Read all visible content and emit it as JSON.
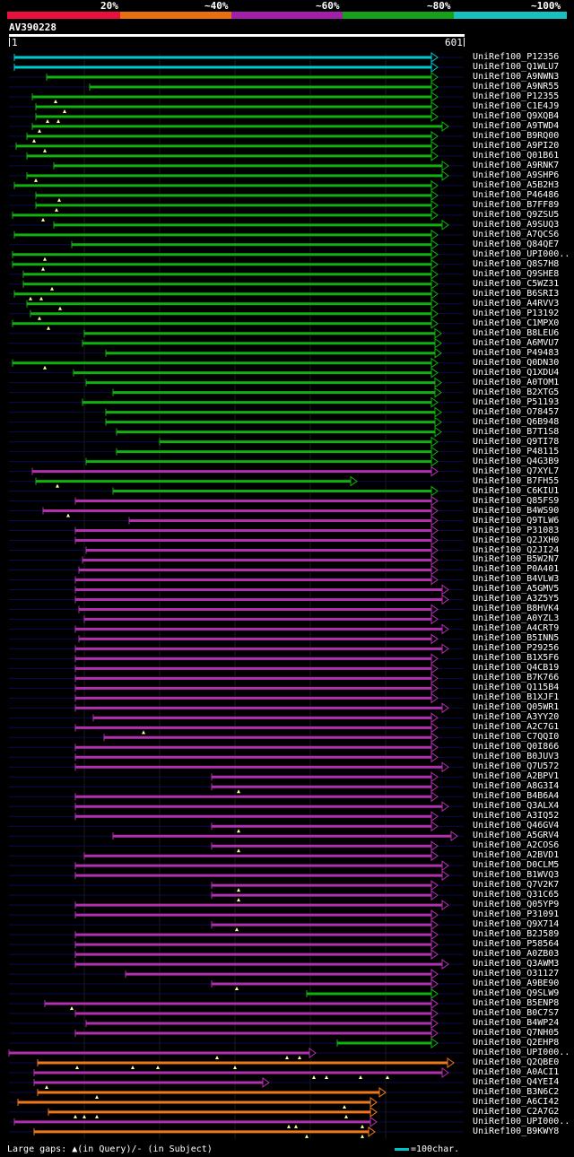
{
  "legend": [
    {
      "label": "20%",
      "color": "#e8103c"
    },
    {
      "label": "~40%",
      "color": "#e87010"
    },
    {
      "label": "~60%",
      "color": "#a020a8"
    },
    {
      "label": "~80%",
      "color": "#18a018"
    },
    {
      "label": "~100%",
      "color": "#18c0c0"
    }
  ],
  "query": {
    "name": "AV390228",
    "start": "1",
    "end": "601"
  },
  "colors": {
    "cyan": "#00c8d0",
    "green": "#10b010",
    "purple": "#b030b0",
    "orange": "#f07818"
  },
  "hits": [
    {
      "name": "UniRef100_P12356",
      "c": "cyan",
      "s": 16,
      "e": 488,
      "m": []
    },
    {
      "name": "UniRef100_Q1WLU7",
      "c": "cyan",
      "s": 16,
      "e": 488,
      "m": []
    },
    {
      "name": "UniRef100_A9NWN3",
      "c": "green",
      "s": 52,
      "e": 488,
      "m": []
    },
    {
      "name": "UniRef100_A9NR55",
      "c": "green",
      "s": 100,
      "e": 488,
      "m": []
    },
    {
      "name": "UniRef100_P12355",
      "c": "green",
      "s": 36,
      "e": 488,
      "m": [
        62
      ]
    },
    {
      "name": "UniRef100_C1E4J9",
      "c": "green",
      "s": 40,
      "e": 488,
      "m": [
        72
      ]
    },
    {
      "name": "UniRef100_Q9XQB4",
      "c": "green",
      "s": 40,
      "e": 488,
      "m": [
        53,
        65
      ]
    },
    {
      "name": "UniRef100_A9TWD4",
      "c": "green",
      "s": 36,
      "e": 500,
      "m": [
        44
      ]
    },
    {
      "name": "UniRef100_B9RQ00",
      "c": "green",
      "s": 30,
      "e": 488,
      "m": [
        38
      ]
    },
    {
      "name": "UniRef100_A9PI20",
      "c": "green",
      "s": 18,
      "e": 488,
      "m": [
        50
      ]
    },
    {
      "name": "UniRef100_Q01B61",
      "c": "green",
      "s": 30,
      "e": 488,
      "m": []
    },
    {
      "name": "UniRef100_A9RNK7",
      "c": "green",
      "s": 60,
      "e": 500,
      "m": []
    },
    {
      "name": "UniRef100_A9SHP6",
      "c": "green",
      "s": 30,
      "e": 500,
      "m": [
        40
      ]
    },
    {
      "name": "UniRef100_A5B2H3",
      "c": "green",
      "s": 16,
      "e": 488,
      "m": []
    },
    {
      "name": "UniRef100_P46486",
      "c": "green",
      "s": 40,
      "e": 488,
      "m": [
        66
      ]
    },
    {
      "name": "UniRef100_B7FF89",
      "c": "green",
      "s": 40,
      "e": 488,
      "m": [
        63
      ]
    },
    {
      "name": "UniRef100_Q9ZSU5",
      "c": "green",
      "s": 14,
      "e": 488,
      "m": [
        48
      ]
    },
    {
      "name": "UniRef100_A9SUQ3",
      "c": "green",
      "s": 60,
      "e": 500,
      "m": []
    },
    {
      "name": "UniRef100_A7QCS6",
      "c": "green",
      "s": 16,
      "e": 488,
      "m": []
    },
    {
      "name": "UniRef100_Q84QE7",
      "c": "green",
      "s": 80,
      "e": 488,
      "m": []
    },
    {
      "name": "UniRef100_UPI000..",
      "c": "green",
      "s": 14,
      "e": 488,
      "m": [
        50
      ]
    },
    {
      "name": "UniRef100_Q8S7H8",
      "c": "green",
      "s": 14,
      "e": 488,
      "m": [
        48
      ]
    },
    {
      "name": "UniRef100_Q9SHE8",
      "c": "green",
      "s": 26,
      "e": 488,
      "m": []
    },
    {
      "name": "UniRef100_C5WZ31",
      "c": "green",
      "s": 26,
      "e": 488,
      "m": [
        58
      ]
    },
    {
      "name": "UniRef100_B6SRI3",
      "c": "green",
      "s": 16,
      "e": 488,
      "m": [
        34,
        46
      ]
    },
    {
      "name": "UniRef100_A4RVV3",
      "c": "green",
      "s": 30,
      "e": 488,
      "m": [
        67
      ]
    },
    {
      "name": "UniRef100_P13192",
      "c": "green",
      "s": 34,
      "e": 488,
      "m": [
        44
      ]
    },
    {
      "name": "UniRef100_C1MPX0",
      "c": "green",
      "s": 14,
      "e": 488,
      "m": [
        54
      ]
    },
    {
      "name": "UniRef100_B8LEU6",
      "c": "green",
      "s": 94,
      "e": 492,
      "m": []
    },
    {
      "name": "UniRef100_A6MVU7",
      "c": "green",
      "s": 92,
      "e": 492,
      "m": []
    },
    {
      "name": "UniRef100_P49483",
      "c": "green",
      "s": 118,
      "e": 492,
      "m": []
    },
    {
      "name": "UniRef100_Q0DN30",
      "c": "green",
      "s": 14,
      "e": 488,
      "m": [
        50
      ]
    },
    {
      "name": "UniRef100_Q1XDU4",
      "c": "green",
      "s": 82,
      "e": 488,
      "m": []
    },
    {
      "name": "UniRef100_A0TOM1",
      "c": "green",
      "s": 96,
      "e": 492,
      "m": []
    },
    {
      "name": "UniRef100_B2XTG5",
      "c": "green",
      "s": 126,
      "e": 492,
      "m": []
    },
    {
      "name": "UniRef100_P51193",
      "c": "green",
      "s": 92,
      "e": 488,
      "m": []
    },
    {
      "name": "UniRef100_O78457",
      "c": "green",
      "s": 118,
      "e": 492,
      "m": []
    },
    {
      "name": "UniRef100_Q6B948",
      "c": "green",
      "s": 118,
      "e": 492,
      "m": []
    },
    {
      "name": "UniRef100_B7T1S8",
      "c": "green",
      "s": 130,
      "e": 492,
      "m": []
    },
    {
      "name": "UniRef100_Q9TI78",
      "c": "green",
      "s": 178,
      "e": 488,
      "m": []
    },
    {
      "name": "UniRef100_P48115",
      "c": "green",
      "s": 130,
      "e": 488,
      "m": []
    },
    {
      "name": "UniRef100_Q4G3B9",
      "c": "green",
      "s": 96,
      "e": 488,
      "m": []
    },
    {
      "name": "UniRef100_Q7XYL7",
      "c": "purple",
      "s": 36,
      "e": 488,
      "m": []
    },
    {
      "name": "UniRef100_B7FH55",
      "c": "green",
      "s": 40,
      "e": 398,
      "m": [
        64
      ]
    },
    {
      "name": "UniRef100_C6KIU1",
      "c": "green",
      "s": 126,
      "e": 488,
      "m": []
    },
    {
      "name": "UniRef100_Q85FS9",
      "c": "purple",
      "s": 84,
      "e": 488,
      "m": []
    },
    {
      "name": "UniRef100_B4WS90",
      "c": "purple",
      "s": 48,
      "e": 488,
      "m": [
        76
      ]
    },
    {
      "name": "UniRef100_Q9TLW6",
      "c": "purple",
      "s": 144,
      "e": 488,
      "m": []
    },
    {
      "name": "UniRef100_P31083",
      "c": "purple",
      "s": 84,
      "e": 488,
      "m": []
    },
    {
      "name": "UniRef100_Q2JXH0",
      "c": "purple",
      "s": 84,
      "e": 488,
      "m": []
    },
    {
      "name": "UniRef100_Q2JI24",
      "c": "purple",
      "s": 96,
      "e": 488,
      "m": []
    },
    {
      "name": "UniRef100_B5W2N7",
      "c": "purple",
      "s": 92,
      "e": 488,
      "m": []
    },
    {
      "name": "UniRef100_P0A401",
      "c": "purple",
      "s": 88,
      "e": 488,
      "m": []
    },
    {
      "name": "UniRef100_B4VLW3",
      "c": "purple",
      "s": 84,
      "e": 488,
      "m": []
    },
    {
      "name": "UniRef100_A5GMV5",
      "c": "purple",
      "s": 84,
      "e": 500,
      "m": []
    },
    {
      "name": "UniRef100_A3Z5Y5",
      "c": "purple",
      "s": 84,
      "e": 500,
      "m": []
    },
    {
      "name": "UniRef100_B8HVK4",
      "c": "purple",
      "s": 88,
      "e": 488,
      "m": []
    },
    {
      "name": "UniRef100_A0YZL3",
      "c": "purple",
      "s": 94,
      "e": 488,
      "m": []
    },
    {
      "name": "UniRef100_A4CRT9",
      "c": "purple",
      "s": 84,
      "e": 500,
      "m": []
    },
    {
      "name": "UniRef100_B5INN5",
      "c": "purple",
      "s": 88,
      "e": 488,
      "m": []
    },
    {
      "name": "UniRef100_P29256",
      "c": "purple",
      "s": 84,
      "e": 500,
      "m": []
    },
    {
      "name": "UniRef100_B1X5F6",
      "c": "purple",
      "s": 84,
      "e": 488,
      "m": []
    },
    {
      "name": "UniRef100_Q4CB19",
      "c": "purple",
      "s": 84,
      "e": 488,
      "m": []
    },
    {
      "name": "UniRef100_B7K766",
      "c": "purple",
      "s": 84,
      "e": 488,
      "m": []
    },
    {
      "name": "UniRef100_Q115B4",
      "c": "purple",
      "s": 84,
      "e": 488,
      "m": []
    },
    {
      "name": "UniRef100_B1XJF1",
      "c": "purple",
      "s": 84,
      "e": 488,
      "m": []
    },
    {
      "name": "UniRef100_Q05WR1",
      "c": "purple",
      "s": 84,
      "e": 500,
      "m": []
    },
    {
      "name": "UniRef100_A3YY20",
      "c": "purple",
      "s": 104,
      "e": 488,
      "m": []
    },
    {
      "name": "UniRef100_A2C7G1",
      "c": "purple",
      "s": 84,
      "e": 488,
      "m": [
        160
      ]
    },
    {
      "name": "UniRef100_C7QQI0",
      "c": "purple",
      "s": 116,
      "e": 488,
      "m": []
    },
    {
      "name": "UniRef100_Q0I866",
      "c": "purple",
      "s": 84,
      "e": 488,
      "m": []
    },
    {
      "name": "UniRef100_B0JUV3",
      "c": "purple",
      "s": 84,
      "e": 488,
      "m": []
    },
    {
      "name": "UniRef100_Q7U572",
      "c": "purple",
      "s": 84,
      "e": 500,
      "m": []
    },
    {
      "name": "UniRef100_A2BPV1",
      "c": "purple",
      "s": 236,
      "e": 488,
      "m": []
    },
    {
      "name": "UniRef100_A8G3I4",
      "c": "purple",
      "s": 236,
      "e": 488,
      "m": [
        266
      ]
    },
    {
      "name": "UniRef100_B4B6A4",
      "c": "purple",
      "s": 84,
      "e": 488,
      "m": []
    },
    {
      "name": "UniRef100_Q3ALX4",
      "c": "purple",
      "s": 84,
      "e": 500,
      "m": []
    },
    {
      "name": "UniRef100_A3IQ52",
      "c": "purple",
      "s": 84,
      "e": 488,
      "m": []
    },
    {
      "name": "UniRef100_Q46GV4",
      "c": "purple",
      "s": 236,
      "e": 488,
      "m": [
        266
      ]
    },
    {
      "name": "UniRef100_A5GRV4",
      "c": "purple",
      "s": 126,
      "e": 510,
      "m": []
    },
    {
      "name": "UniRef100_A2COS6",
      "c": "purple",
      "s": 236,
      "e": 488,
      "m": [
        266
      ]
    },
    {
      "name": "UniRef100_A2BVD1",
      "c": "purple",
      "s": 94,
      "e": 488,
      "m": []
    },
    {
      "name": "UniRef100_D0CLM5",
      "c": "purple",
      "s": 84,
      "e": 500,
      "m": []
    },
    {
      "name": "UniRef100_B1WVQ3",
      "c": "purple",
      "s": 84,
      "e": 500,
      "m": []
    },
    {
      "name": "UniRef100_Q7V2K7",
      "c": "purple",
      "s": 236,
      "e": 488,
      "m": [
        266
      ]
    },
    {
      "name": "UniRef100_Q31C65",
      "c": "purple",
      "s": 236,
      "e": 488,
      "m": [
        266
      ]
    },
    {
      "name": "UniRef100_Q05YP9",
      "c": "purple",
      "s": 84,
      "e": 500,
      "m": []
    },
    {
      "name": "UniRef100_P31091",
      "c": "purple",
      "s": 84,
      "e": 488,
      "m": []
    },
    {
      "name": "UniRef100_Q9X714",
      "c": "purple",
      "s": 236,
      "e": 488,
      "m": [
        264
      ]
    },
    {
      "name": "UniRef100_B2J589",
      "c": "purple",
      "s": 84,
      "e": 488,
      "m": []
    },
    {
      "name": "UniRef100_P58564",
      "c": "purple",
      "s": 84,
      "e": 488,
      "m": []
    },
    {
      "name": "UniRef100_A0ZB03",
      "c": "purple",
      "s": 84,
      "e": 488,
      "m": []
    },
    {
      "name": "UniRef100_Q3AWM3",
      "c": "purple",
      "s": 84,
      "e": 500,
      "m": []
    },
    {
      "name": "UniRef100_O31127",
      "c": "purple",
      "s": 140,
      "e": 488,
      "m": []
    },
    {
      "name": "UniRef100_A9BE90",
      "c": "purple",
      "s": 236,
      "e": 488,
      "m": [
        264
      ]
    },
    {
      "name": "UniRef100_Q9SLW9",
      "c": "green",
      "s": 342,
      "e": 488,
      "m": []
    },
    {
      "name": "UniRef100_B5ENP8",
      "c": "purple",
      "s": 50,
      "e": 488,
      "m": [
        80
      ]
    },
    {
      "name": "UniRef100_B0C7S7",
      "c": "purple",
      "s": 84,
      "e": 488,
      "m": []
    },
    {
      "name": "UniRef100_B4WP24",
      "c": "purple",
      "s": 96,
      "e": 488,
      "m": []
    },
    {
      "name": "UniRef100_Q7NH05",
      "c": "purple",
      "s": 84,
      "e": 488,
      "m": []
    },
    {
      "name": "UniRef100_Q2EHP8",
      "c": "green",
      "s": 376,
      "e": 488,
      "m": []
    },
    {
      "name": "UniRef100_UPI000..",
      "c": "purple",
      "s": 10,
      "e": 352,
      "m": [
        242,
        320,
        334
      ]
    },
    {
      "name": "UniRef100_Q2QBE0",
      "c": "orange",
      "s": 42,
      "e": 506,
      "m": [
        86,
        148,
        176,
        262
      ]
    },
    {
      "name": "UniRef100_A0ACI1",
      "c": "purple",
      "s": 38,
      "e": 500,
      "m": [
        350,
        364,
        402,
        432
      ]
    },
    {
      "name": "UniRef100_Q4YEI4",
      "c": "purple",
      "s": 38,
      "e": 300,
      "m": [
        52
      ]
    },
    {
      "name": "UniRef100_B3N6C2",
      "c": "orange",
      "s": 42,
      "e": 430,
      "m": [
        108
      ]
    },
    {
      "name": "UniRef100_A6CI42",
      "c": "orange",
      "s": 20,
      "e": 420,
      "m": [
        384
      ]
    },
    {
      "name": "UniRef100_C2A7G2",
      "c": "orange",
      "s": 54,
      "e": 420,
      "m": [
        84,
        94,
        108,
        386
      ]
    },
    {
      "name": "UniRef100_UPI000..",
      "c": "purple",
      "s": 16,
      "e": 420,
      "m": [
        322,
        330,
        404
      ]
    },
    {
      "name": "UniRef100_B9KWY8",
      "c": "orange",
      "s": 38,
      "e": 418,
      "m": [
        342,
        404
      ]
    }
  ],
  "footer": {
    "text": "Large gaps: ▲(in Query)/- (in Subject)",
    "scale": "=100char."
  }
}
